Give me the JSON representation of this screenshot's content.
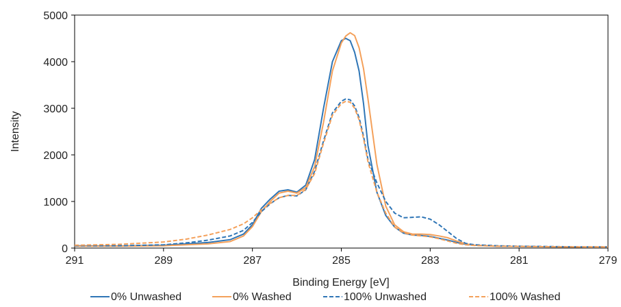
{
  "chart_data": {
    "type": "line",
    "title": "",
    "xlabel": "Binding Energy [eV]",
    "ylabel": "Intensity",
    "xlim": [
      291,
      279
    ],
    "x_reversed": true,
    "ylim": [
      0,
      5000
    ],
    "x_ticks": [
      291,
      289,
      287,
      285,
      283,
      281,
      279
    ],
    "y_ticks": [
      0,
      1000,
      2000,
      3000,
      4000,
      5000
    ],
    "grid": false,
    "legend_position": "bottom",
    "series": [
      {
        "name": "0% Unwashed",
        "color": "#2E75B6",
        "dash": "solid",
        "x": [
          291,
          290,
          289,
          288.5,
          288,
          287.5,
          287.2,
          287,
          286.8,
          286.6,
          286.4,
          286.2,
          286,
          285.8,
          285.6,
          285.4,
          285.2,
          285,
          284.9,
          284.8,
          284.7,
          284.6,
          284.5,
          284.4,
          284.2,
          284,
          283.8,
          283.6,
          283.4,
          283.2,
          283,
          282.8,
          282.6,
          282.4,
          282.2,
          282,
          281.5,
          281,
          280.5,
          280,
          279.5,
          279
        ],
        "y": [
          50,
          45,
          60,
          90,
          120,
          180,
          300,
          500,
          850,
          1050,
          1220,
          1250,
          1200,
          1350,
          1900,
          3000,
          4000,
          4450,
          4500,
          4450,
          4200,
          3800,
          3100,
          2200,
          1200,
          700,
          450,
          320,
          280,
          270,
          250,
          210,
          170,
          120,
          80,
          60,
          40,
          35,
          30,
          25,
          20,
          20
        ]
      },
      {
        "name": "0% Washed",
        "color": "#F4A05A",
        "dash": "solid",
        "x": [
          291,
          290,
          289,
          288.5,
          288,
          287.5,
          287.2,
          287,
          286.8,
          286.6,
          286.4,
          286.2,
          286,
          285.8,
          285.6,
          285.4,
          285.2,
          285,
          284.9,
          284.8,
          284.7,
          284.6,
          284.5,
          284.4,
          284.2,
          284,
          283.8,
          283.6,
          283.4,
          283.2,
          283,
          282.8,
          282.6,
          282.4,
          282.2,
          282,
          281.5,
          281,
          280.5,
          280,
          279.5,
          279
        ],
        "y": [
          40,
          40,
          50,
          70,
          90,
          140,
          260,
          460,
          780,
          1000,
          1180,
          1220,
          1180,
          1300,
          1750,
          2700,
          3800,
          4400,
          4550,
          4620,
          4560,
          4300,
          3850,
          3200,
          1800,
          900,
          500,
          350,
          300,
          300,
          290,
          260,
          220,
          150,
          90,
          60,
          40,
          35,
          30,
          25,
          20,
          20
        ]
      },
      {
        "name": "100% Unwashed",
        "color": "#2E75B6",
        "dash": "dashed",
        "x": [
          291,
          290,
          289,
          288.5,
          288,
          287.5,
          287.2,
          287,
          286.8,
          286.6,
          286.4,
          286.2,
          286,
          285.8,
          285.6,
          285.4,
          285.2,
          285,
          284.9,
          284.8,
          284.7,
          284.6,
          284.5,
          284.4,
          284.2,
          284,
          283.8,
          283.6,
          283.4,
          283.2,
          283,
          282.8,
          282.6,
          282.4,
          282.2,
          282,
          281.5,
          281,
          280.5,
          280,
          279.5,
          279
        ],
        "y": [
          50,
          50,
          70,
          110,
          170,
          260,
          380,
          550,
          780,
          950,
          1080,
          1130,
          1120,
          1250,
          1650,
          2300,
          2900,
          3150,
          3200,
          3180,
          3050,
          2800,
          2400,
          1900,
          1400,
          1000,
          750,
          650,
          660,
          670,
          620,
          500,
          350,
          200,
          100,
          70,
          50,
          40,
          35,
          30,
          25,
          25
        ]
      },
      {
        "name": "100% Washed",
        "color": "#F4A05A",
        "dash": "dashed",
        "x": [
          291,
          290,
          289,
          288.5,
          288,
          287.5,
          287.2,
          287,
          286.8,
          286.6,
          286.4,
          286.2,
          286,
          285.8,
          285.6,
          285.4,
          285.2,
          285,
          284.9,
          284.8,
          284.7,
          284.6,
          284.5,
          284.4,
          284.2,
          284,
          283.8,
          283.6,
          283.4,
          283.2,
          283,
          282.8,
          282.6,
          282.4,
          282.2,
          282,
          281.5,
          281,
          280.5,
          280,
          279.5,
          279
        ],
        "y": [
          60,
          80,
          130,
          190,
          280,
          400,
          520,
          650,
          820,
          960,
          1080,
          1130,
          1130,
          1260,
          1600,
          2250,
          2850,
          3100,
          3150,
          3130,
          3000,
          2750,
          2350,
          1850,
          1200,
          750,
          450,
          330,
          280,
          260,
          240,
          200,
          150,
          100,
          70,
          55,
          40,
          35,
          30,
          25,
          25,
          25
        ]
      }
    ]
  }
}
